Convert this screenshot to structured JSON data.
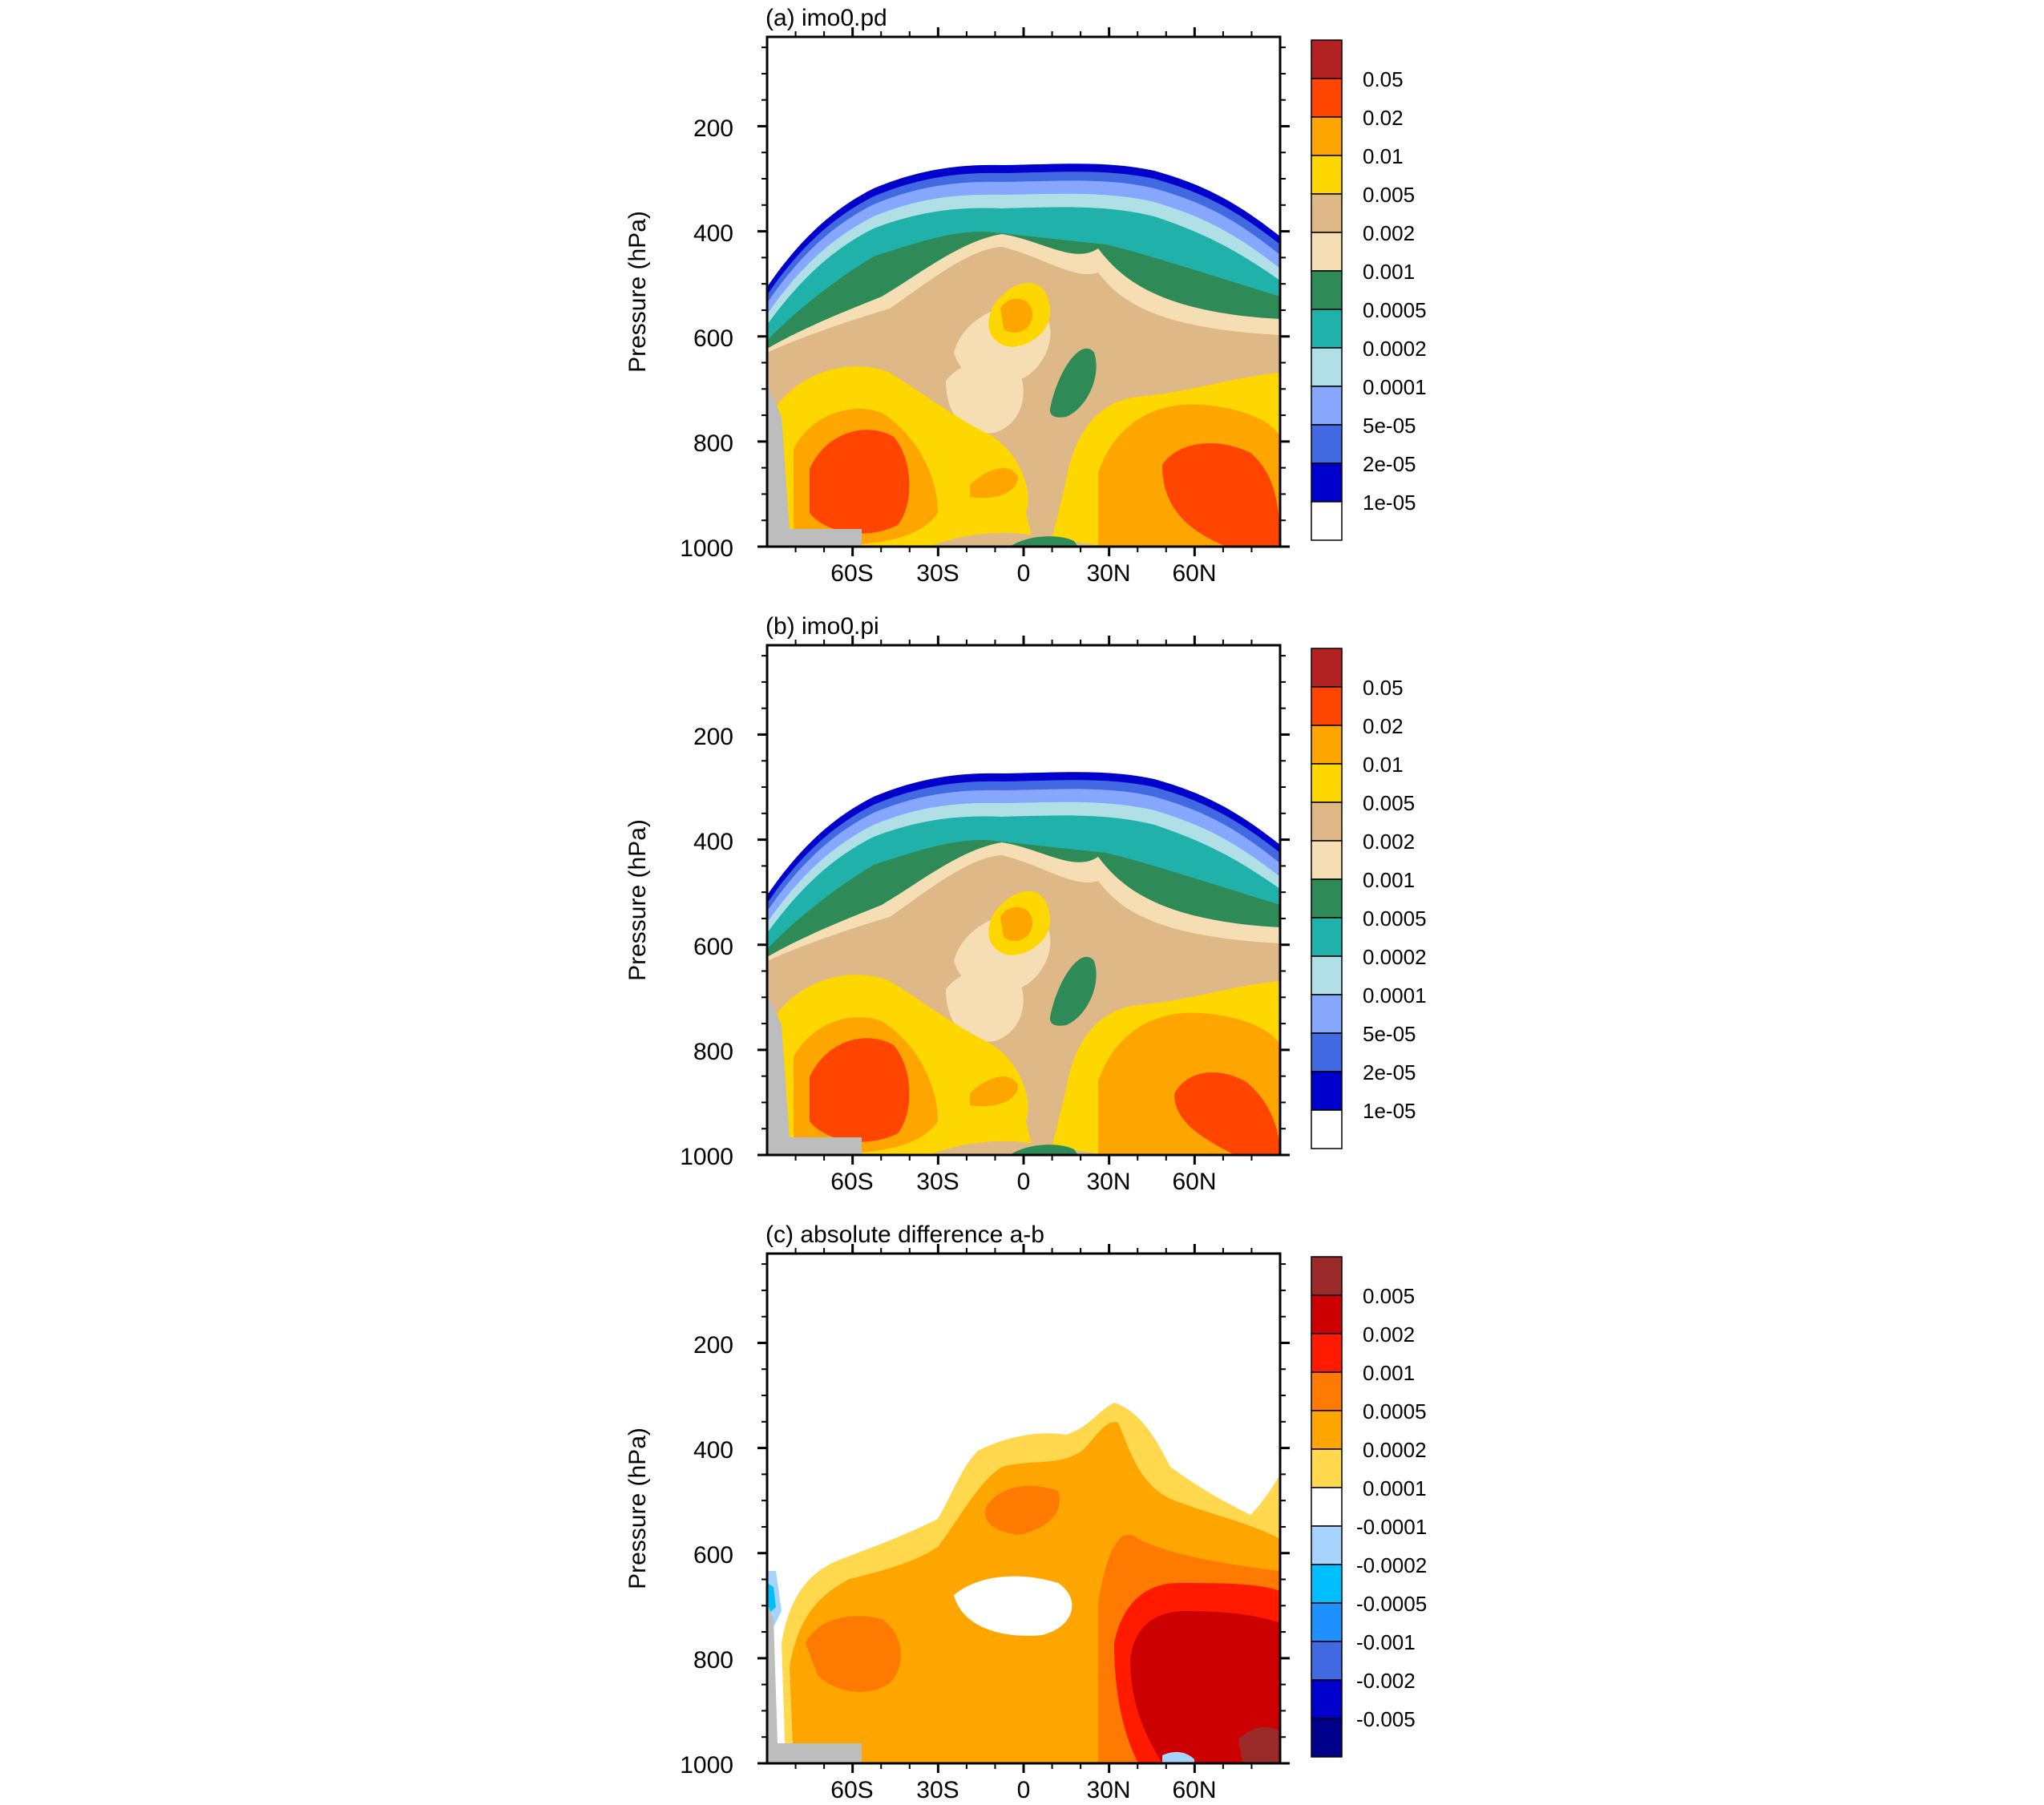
{
  "chart_data": [
    {
      "type": "contour",
      "title": "(a) imo0.pd",
      "ylabel": "Pressure (hPa)",
      "xlabel": "",
      "x_ticks": [
        "60S",
        "30S",
        "0",
        "30N",
        "60N"
      ],
      "x_tick_values": [
        -60,
        -30,
        0,
        30,
        60
      ],
      "xlim": [
        -90,
        90
      ],
      "y_ticks": [
        "200",
        "400",
        "600",
        "800",
        "1000"
      ],
      "y_tick_values": [
        200,
        400,
        600,
        800,
        1000
      ],
      "ylim": [
        1000,
        30
      ],
      "colorbar": {
        "labels": [
          "0.05",
          "0.02",
          "0.01",
          "0.005",
          "0.002",
          "0.001",
          "0.0005",
          "0.0002",
          "0.0001",
          "5e-05",
          "2e-05",
          "1e-05"
        ],
        "colors": [
          "#b22222",
          "#ff4500",
          "#ffa500",
          "#ffd700",
          "#deb887",
          "#f5deb3",
          "#2e8b57",
          "#20b2aa",
          "#b0e0e6",
          "#87a7ff",
          "#4169e1",
          "#0000cd",
          "#ffffff"
        ]
      }
    },
    {
      "type": "contour",
      "title": "(b) imo0.pi",
      "ylabel": "Pressure (hPa)",
      "xlabel": "",
      "x_ticks": [
        "60S",
        "30S",
        "0",
        "30N",
        "60N"
      ],
      "x_tick_values": [
        -60,
        -30,
        0,
        30,
        60
      ],
      "xlim": [
        -90,
        90
      ],
      "y_ticks": [
        "200",
        "400",
        "600",
        "800",
        "1000"
      ],
      "y_tick_values": [
        200,
        400,
        600,
        800,
        1000
      ],
      "ylim": [
        1000,
        30
      ],
      "colorbar": {
        "labels": [
          "0.05",
          "0.02",
          "0.01",
          "0.005",
          "0.002",
          "0.001",
          "0.0005",
          "0.0002",
          "0.0001",
          "5e-05",
          "2e-05",
          "1e-05"
        ],
        "colors": [
          "#b22222",
          "#ff4500",
          "#ffa500",
          "#ffd700",
          "#deb887",
          "#f5deb3",
          "#2e8b57",
          "#20b2aa",
          "#b0e0e6",
          "#87a7ff",
          "#4169e1",
          "#0000cd",
          "#ffffff"
        ]
      }
    },
    {
      "type": "contour",
      "title": "(c) absolute difference a-b",
      "ylabel": "Pressure (hPa)",
      "xlabel": "",
      "x_ticks": [
        "60S",
        "30S",
        "0",
        "30N",
        "60N"
      ],
      "x_tick_values": [
        -60,
        -30,
        0,
        30,
        60
      ],
      "xlim": [
        -90,
        90
      ],
      "y_ticks": [
        "200",
        "400",
        "600",
        "800",
        "1000"
      ],
      "y_tick_values": [
        200,
        400,
        600,
        800,
        1000
      ],
      "ylim": [
        1000,
        30
      ],
      "colorbar": {
        "labels": [
          "0.005",
          "0.002",
          "0.001",
          "0.0005",
          "0.0002",
          "0.0001",
          "-0.0001",
          "-0.0002",
          "-0.0005",
          "-0.001",
          "-0.002",
          "-0.005"
        ],
        "colors": [
          "#9b2a2a",
          "#cc0000",
          "#ff1a00",
          "#ff7a00",
          "#ffa500",
          "#ffd84d",
          "#ffffff",
          "#a6d4ff",
          "#00bfff",
          "#1e90ff",
          "#4169e1",
          "#0000cd",
          "#00008b"
        ]
      }
    }
  ]
}
